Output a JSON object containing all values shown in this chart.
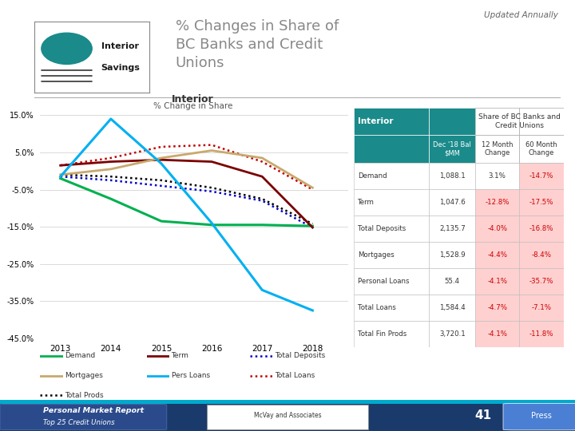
{
  "title_main": "% Changes in Share of\nBC Banks and Credit\nUnions",
  "updated_text": "Updated Annually",
  "chart_title": "Interior",
  "chart_subtitle": "% Change in Share",
  "years": [
    2013,
    2014,
    2015,
    2016,
    2017,
    2018
  ],
  "demand": [
    -2.0,
    -7.5,
    -13.5,
    -14.5,
    -14.5,
    -14.8
  ],
  "term": [
    1.5,
    2.5,
    3.0,
    2.5,
    -1.5,
    -15.2
  ],
  "total_deposits": [
    -1.5,
    -2.5,
    -4.0,
    -5.5,
    -8.0,
    -15.2
  ],
  "mortgages": [
    -1.0,
    0.5,
    3.5,
    5.5,
    3.5,
    -4.5
  ],
  "pers_loans": [
    -1.5,
    14.0,
    2.0,
    -14.0,
    -32.0,
    -37.5
  ],
  "total_loans": [
    1.5,
    3.5,
    6.5,
    7.0,
    2.5,
    -5.0
  ],
  "total_prods": [
    -1.0,
    -1.5,
    -2.5,
    -4.5,
    -7.5,
    -14.2
  ],
  "ylim": [
    -45,
    17
  ],
  "yticks": [
    15.0,
    5.0,
    -5.0,
    -15.0,
    -25.0,
    -35.0,
    -45.0
  ],
  "colors": {
    "demand": "#00b050",
    "term": "#7b0000",
    "total_deposits": "#0000cd",
    "mortgages": "#c8a96e",
    "pers_loans": "#00b0f0",
    "total_loans": "#c00000",
    "total_prods": "#000000"
  },
  "bg_color": "#ffffff",
  "header_bg": "#1a8a8a",
  "table_rows": [
    [
      "Demand",
      "1,088.1",
      "3.1%",
      "-14.7%"
    ],
    [
      "Term",
      "1,047.6",
      "-12.8%",
      "-17.5%"
    ],
    [
      "Total Deposits",
      "2,135.7",
      "-4.0%",
      "-16.8%"
    ],
    [
      "Mortgages",
      "1,528.9",
      "-4.4%",
      "-8.4%"
    ],
    [
      "Personal Loans",
      "55.4",
      "-4.1%",
      "-35.7%"
    ],
    [
      "Total Loans",
      "1,584.4",
      "-4.7%",
      "-7.1%"
    ],
    [
      "Total Fin Prods",
      "3,720.1",
      "-4.1%",
      "-11.8%"
    ]
  ],
  "table_col_headers": [
    "",
    "Dec '18 Bal\n$MM",
    "12 Month\nChange",
    "60 Month\nChange"
  ],
  "footer_bg": "#1a3a6b",
  "footer_bar_color": "#00aacc",
  "page_num": "41",
  "press_btn_color": "#4a7fd4"
}
